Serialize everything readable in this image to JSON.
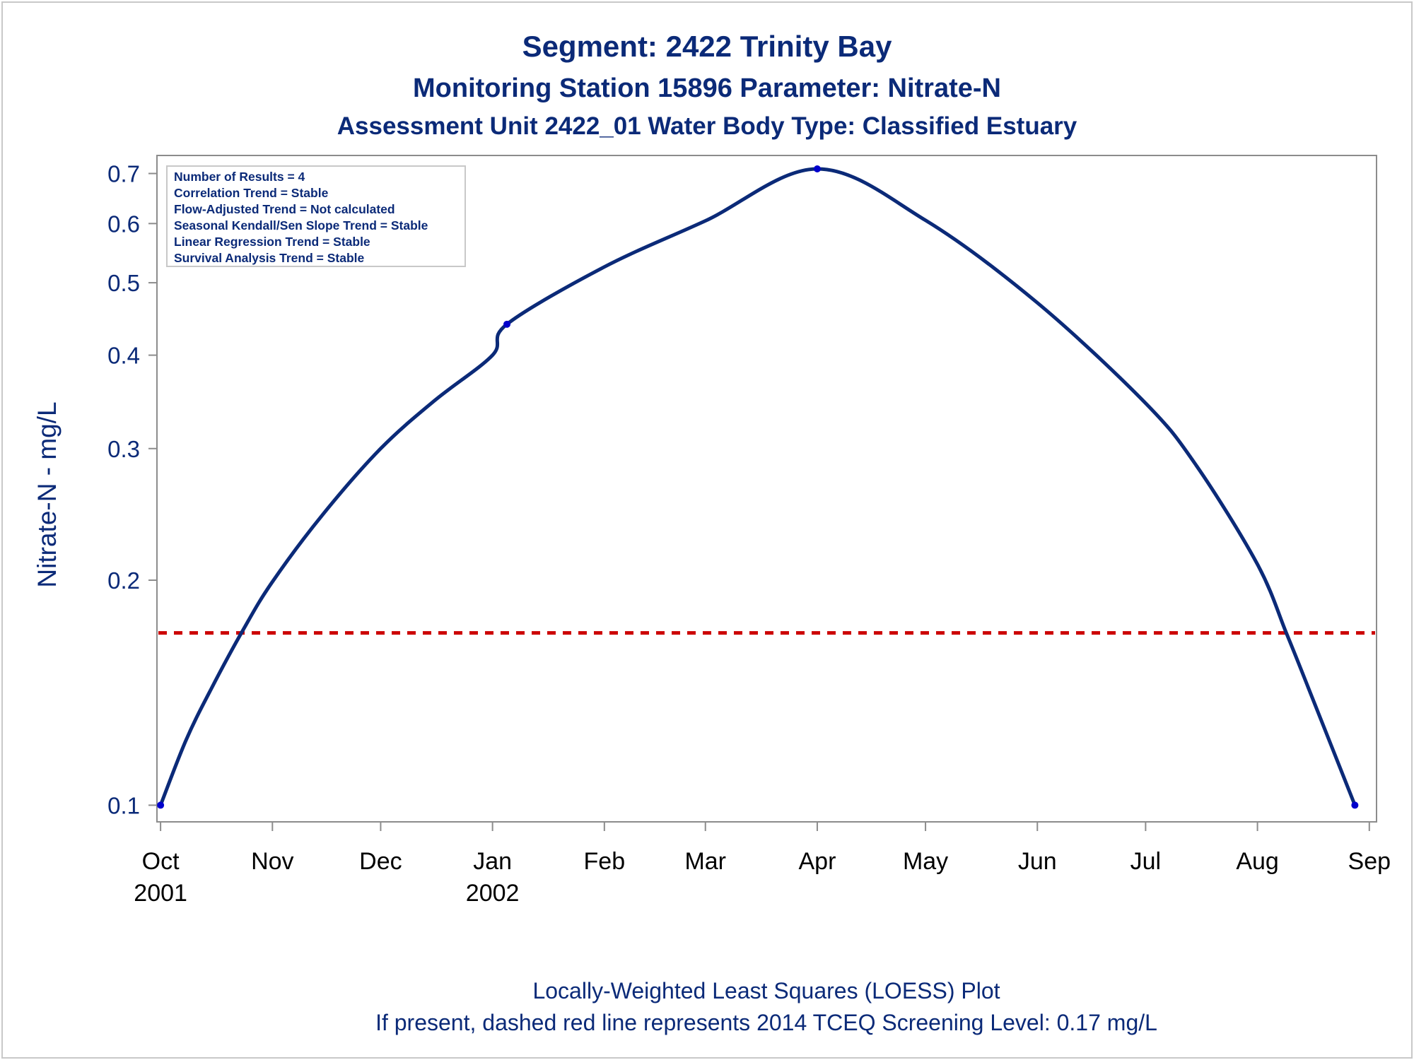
{
  "chart_data": {
    "type": "line",
    "title_lines": [
      "Segment: 2422  Trinity Bay",
      "Monitoring Station 15896 Parameter: Nitrate-N",
      "Assessment Unit 2422_01   Water Body Type: Classified Estuary"
    ],
    "ylabel": "Nitrate-N - mg/L",
    "yscale": "log",
    "ylim": [
      0.095,
      0.74
    ],
    "yticks": [
      {
        "value": 0.1,
        "label": "0.1"
      },
      {
        "value": 0.2,
        "label": "0.2"
      },
      {
        "value": 0.3,
        "label": "0.3"
      },
      {
        "value": 0.4,
        "label": "0.4"
      },
      {
        "value": 0.5,
        "label": "0.5"
      },
      {
        "value": 0.6,
        "label": "0.6"
      },
      {
        "value": 0.7,
        "label": "0.7"
      }
    ],
    "xlim": [
      "2001-09-30",
      "2002-09-03"
    ],
    "xticks": [
      {
        "date": "2001-10-01",
        "label": "Oct",
        "year": "2001"
      },
      {
        "date": "2001-11-01",
        "label": "Nov",
        "year": ""
      },
      {
        "date": "2001-12-01",
        "label": "Dec",
        "year": ""
      },
      {
        "date": "2002-01-01",
        "label": "Jan",
        "year": "2002"
      },
      {
        "date": "2002-02-01",
        "label": "Feb",
        "year": ""
      },
      {
        "date": "2002-03-01",
        "label": "Mar",
        "year": ""
      },
      {
        "date": "2002-04-01",
        "label": "Apr",
        "year": ""
      },
      {
        "date": "2002-05-01",
        "label": "May",
        "year": ""
      },
      {
        "date": "2002-06-01",
        "label": "Jun",
        "year": ""
      },
      {
        "date": "2002-07-01",
        "label": "Jul",
        "year": ""
      },
      {
        "date": "2002-08-01",
        "label": "Aug",
        "year": ""
      },
      {
        "date": "2002-09-01",
        "label": "Sep",
        "year": ""
      }
    ],
    "points": [
      {
        "date": "2001-10-01",
        "y": 0.1
      },
      {
        "date": "2002-01-05",
        "y": 0.44
      },
      {
        "date": "2002-04-01",
        "y": 0.71
      },
      {
        "date": "2002-08-28",
        "y": 0.1
      }
    ],
    "loess_curve": [
      {
        "date": "2001-10-01",
        "y": 0.1
      },
      {
        "date": "2001-10-08",
        "y": 0.122
      },
      {
        "date": "2001-10-15",
        "y": 0.143
      },
      {
        "date": "2001-10-24",
        "y": 0.172
      },
      {
        "date": "2001-11-01",
        "y": 0.199
      },
      {
        "date": "2001-11-15",
        "y": 0.245
      },
      {
        "date": "2001-12-01",
        "y": 0.3
      },
      {
        "date": "2001-12-16",
        "y": 0.348
      },
      {
        "date": "2002-01-01",
        "y": 0.4
      },
      {
        "date": "2002-01-05",
        "y": 0.44
      },
      {
        "date": "2002-02-01",
        "y": 0.525
      },
      {
        "date": "2002-03-01",
        "y": 0.605
      },
      {
        "date": "2002-04-01",
        "y": 0.71
      },
      {
        "date": "2002-05-01",
        "y": 0.606
      },
      {
        "date": "2002-06-01",
        "y": 0.47
      },
      {
        "date": "2002-07-01",
        "y": 0.345
      },
      {
        "date": "2002-07-15",
        "y": 0.285
      },
      {
        "date": "2002-08-01",
        "y": 0.21
      },
      {
        "date": "2002-08-09",
        "y": 0.17
      },
      {
        "date": "2002-08-15",
        "y": 0.144
      },
      {
        "date": "2002-08-28",
        "y": 0.1
      }
    ],
    "reference_line": {
      "y": 0.17,
      "style": "dashed",
      "color": "#cc0000"
    },
    "legend_placement": "top-left",
    "stats_box": [
      "Number of Results = 4",
      "Correlation Trend = Stable",
      "Flow-Adjusted Trend = Not calculated",
      "Seasonal Kendall/Sen Slope Trend = Stable",
      "Linear Regression Trend = Stable",
      "Survival Analysis Trend = Stable"
    ],
    "footnotes": [
      "Locally-Weighted Least Squares (LOESS) Plot",
      "If present, dashed red line represents 2014 TCEQ Screening Level: 0.17 mg/L"
    ],
    "grid": false,
    "colors": {
      "text": "#0b2a78",
      "line": "#0b2a78",
      "marker": "#0000cc",
      "axis": "#8c8c8c",
      "reference": "#cc0000"
    }
  }
}
